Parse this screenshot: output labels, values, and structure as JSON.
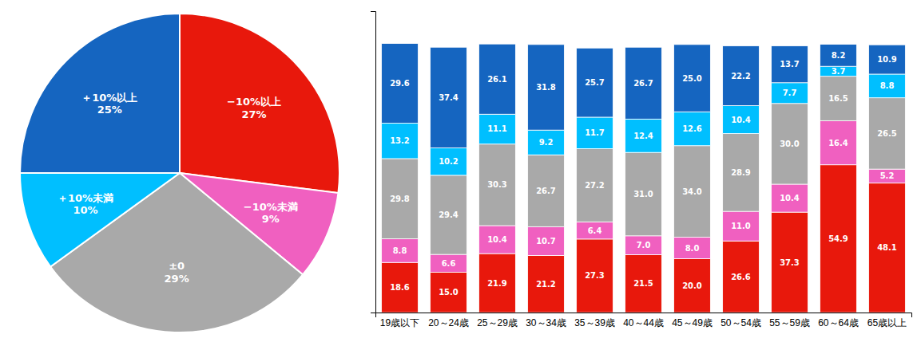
{
  "chart_data": [
    {
      "type": "pie",
      "categories": [
        "−10%以上",
        "−10%未満",
        "±0",
        "＋10%未満",
        "＋10%以上"
      ],
      "values": [
        27,
        9,
        29,
        10,
        25
      ],
      "value_labels": [
        "27%",
        "9%",
        "29%",
        "10%",
        "25%"
      ],
      "colors": [
        "#e8180c",
        "#f060c0",
        "#a9a9a9",
        "#00bfff",
        "#1565c0"
      ],
      "data_labels": true
    },
    {
      "type": "bar",
      "stacked": true,
      "categories": [
        "19歳以下",
        "20～24歳",
        "25～29歳",
        "30～34歳",
        "35～39歳",
        "40～44歳",
        "45～49歳",
        "50～54歳",
        "55～59歳",
        "60～64歳",
        "65歳以上"
      ],
      "series": [
        {
          "color": "#e8180c",
          "values": [
            18.6,
            15.0,
            21.9,
            21.2,
            27.3,
            21.5,
            20.0,
            26.6,
            37.3,
            54.9,
            48.1
          ]
        },
        {
          "color": "#f060c0",
          "values": [
            8.8,
            6.6,
            10.4,
            10.7,
            6.4,
            7.0,
            8.0,
            11.0,
            10.4,
            16.4,
            5.2
          ]
        },
        {
          "color": "#a9a9a9",
          "values": [
            29.8,
            29.4,
            30.3,
            26.7,
            27.2,
            31.0,
            34.0,
            28.9,
            30.0,
            16.5,
            26.5
          ]
        },
        {
          "color": "#00bfff",
          "values": [
            13.2,
            10.2,
            11.1,
            9.2,
            11.7,
            12.4,
            12.6,
            10.4,
            7.7,
            3.7,
            8.8
          ]
        },
        {
          "color": "#1565c0",
          "values": [
            29.6,
            37.4,
            26.1,
            31.8,
            25.7,
            26.7,
            25.0,
            22.2,
            13.7,
            8.2,
            10.9
          ]
        }
      ],
      "ylim": [
        0,
        112
      ],
      "tick_labels": "x",
      "data_labels": true
    }
  ]
}
